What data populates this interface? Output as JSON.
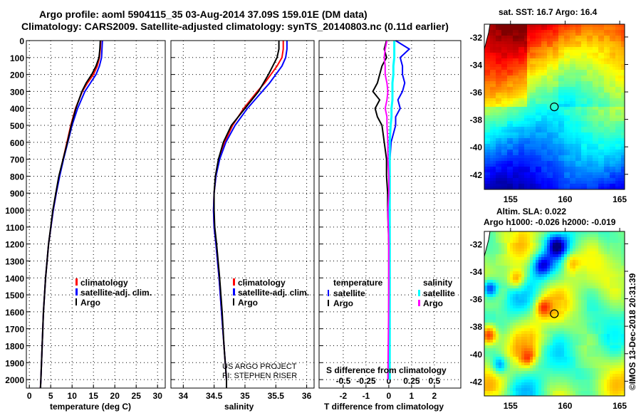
{
  "title_line1": "Argo profile: aoml 5904115_35 03-Aug-2014 37.09S 159.01E (DM data)",
  "title_line2": "Climatology: CARS2009. Satellite-adjusted climatology: synTS_20140803.nc (0.11d earlier)",
  "colors": {
    "climatology": "#ff0000",
    "satellite": "#0000ff",
    "argo": "#000000",
    "sal_satellite": "#00ffff",
    "sal_argo": "#ff00ff"
  },
  "depth_ticks": [
    "0",
    "100",
    "200",
    "300",
    "400",
    "500",
    "600",
    "700",
    "800",
    "900",
    "1000",
    "1100",
    "1200",
    "1300",
    "1400",
    "1500",
    "1600",
    "1700",
    "1800",
    "1900",
    "2000"
  ],
  "legend_profile": {
    "climatology": "climatology",
    "satellite": "satellite-adj. clim.",
    "argo": "Argo"
  },
  "legend_diff": {
    "temperature": "temperature",
    "salinity": "salinity",
    "satellite": "satellite",
    "argo": "Argo"
  },
  "credit": {
    "line1": "US ARGO PROJECT",
    "line2": "PI: STEPHEN RISER"
  },
  "copyright": "©IMOS 13-Dec-2018 20:31:39",
  "chart_data": [
    {
      "type": "line",
      "title": "",
      "xlabel": "temperature (deg C)",
      "ylabel": "depth",
      "xlim": [
        -0.7,
        31.8
      ],
      "ylim": [
        2050,
        0
      ],
      "xticks": [
        "0",
        "5",
        "10",
        "15",
        "20",
        "25",
        "30"
      ],
      "depth": [
        0,
        50,
        100,
        150,
        200,
        250,
        300,
        400,
        500,
        600,
        700,
        800,
        900,
        1000,
        1200,
        1400,
        1600,
        1800,
        2000,
        2050
      ],
      "series": [
        {
          "name": "climatology",
          "values": [
            16.7,
            16.6,
            16.4,
            15.9,
            15.0,
            13.6,
            12.4,
            10.8,
            9.7,
            8.8,
            7.9,
            7.0,
            6.3,
            5.6,
            4.5,
            3.8,
            3.3,
            3.0,
            2.7,
            2.6
          ]
        },
        {
          "name": "satellite-adj. clim.",
          "values": [
            17.1,
            17.0,
            16.9,
            16.4,
            15.6,
            14.3,
            13.0,
            11.3,
            10.0,
            9.0,
            8.0,
            7.1,
            6.3,
            5.6,
            4.5,
            3.8,
            3.3,
            3.0,
            2.7,
            2.6
          ]
        },
        {
          "name": "Argo",
          "values": [
            16.6,
            16.5,
            16.3,
            15.6,
            14.6,
            13.3,
            12.3,
            10.9,
            9.8,
            8.9,
            7.9,
            6.9,
            6.2,
            5.5,
            4.5,
            3.8,
            3.3,
            3.0,
            2.7,
            2.6
          ]
        }
      ]
    },
    {
      "type": "line",
      "title": "",
      "xlabel": "salinity",
      "ylabel": "depth",
      "xlim": [
        33.8,
        36.12
      ],
      "ylim": [
        2050,
        0
      ],
      "xticks": [
        "34",
        "34.5",
        "35",
        "35.5",
        "36"
      ],
      "depth": [
        0,
        50,
        100,
        150,
        200,
        250,
        300,
        400,
        500,
        600,
        700,
        800,
        900,
        1000,
        1100,
        1200,
        1400,
        1600,
        1800,
        2000,
        2050
      ],
      "series": [
        {
          "name": "climatology",
          "values": [
            35.62,
            35.62,
            35.6,
            35.52,
            35.42,
            35.32,
            35.2,
            34.98,
            34.8,
            34.67,
            34.58,
            34.53,
            34.5,
            34.49,
            34.5,
            34.53,
            34.58,
            34.62,
            34.66,
            34.7,
            34.7
          ]
        },
        {
          "name": "satellite-adj. clim.",
          "values": [
            35.68,
            35.68,
            35.66,
            35.6,
            35.5,
            35.4,
            35.28,
            35.04,
            34.84,
            34.69,
            34.59,
            34.53,
            34.5,
            34.49,
            34.5,
            34.53,
            34.58,
            34.62,
            34.66,
            34.7,
            34.7
          ]
        },
        {
          "name": "Argo",
          "values": [
            35.55,
            35.55,
            35.52,
            35.45,
            35.38,
            35.3,
            35.22,
            35.0,
            34.78,
            34.65,
            34.57,
            34.52,
            34.5,
            34.5,
            34.51,
            34.54,
            34.59,
            34.63,
            34.66,
            34.7,
            34.7
          ]
        }
      ]
    },
    {
      "type": "line",
      "title": "",
      "xlabel": "T difference from climatology",
      "x2label": "S difference from climatology",
      "ylabel": "depth",
      "xlim": [
        -3.06,
        3.16
      ],
      "ylim": [
        2050,
        0
      ],
      "xticks": [
        "-2",
        "-1",
        "0",
        "1",
        "2"
      ],
      "x2ticks": [
        "-0.5",
        "-0.25",
        "0",
        "0.25",
        "0.5"
      ],
      "depth": [
        0,
        50,
        100,
        150,
        200,
        250,
        300,
        350,
        400,
        450,
        500,
        600,
        700,
        800,
        900,
        1000,
        1200,
        1500,
        2000
      ],
      "series": [
        {
          "name": "temperature satellite",
          "values": [
            0.3,
            0.9,
            0.5,
            0.6,
            0.6,
            0.7,
            0.6,
            0.4,
            0.5,
            0.3,
            0.3,
            0.1,
            0.05,
            0.02,
            0.02,
            0.0,
            0.0,
            0.0,
            0.0
          ]
        },
        {
          "name": "temperature Argo",
          "values": [
            -0.1,
            -0.2,
            -0.1,
            -0.3,
            -0.4,
            -0.5,
            -0.7,
            -0.4,
            -0.6,
            -0.5,
            -0.3,
            -0.2,
            -0.1,
            -0.1,
            -0.05,
            -0.05,
            0.0,
            0.0,
            0.0
          ]
        },
        {
          "name": "salinity satellite",
          "values": [
            0.06,
            0.06,
            0.06,
            0.05,
            0.05,
            0.04,
            0.04,
            0.04,
            0.03,
            0.03,
            0.02,
            0.01,
            0.01,
            0.01,
            0.01,
            0.01,
            0.01,
            0.01,
            0.01
          ]
        },
        {
          "name": "salinity Argo",
          "values": [
            -0.02,
            -0.04,
            -0.05,
            -0.04,
            -0.04,
            -0.02,
            -0.01,
            -0.02,
            -0.04,
            -0.02,
            -0.02,
            -0.01,
            -0.01,
            0.0,
            0.0,
            -0.01,
            0.0,
            0.0,
            -0.01
          ]
        }
      ]
    },
    {
      "type": "heatmap",
      "title": "sat. SST: 16.7 Argo: 16.4",
      "xticks": [
        "155",
        "160",
        "165"
      ],
      "yticks": [
        "-32",
        "-34",
        "-36",
        "-38",
        "-40",
        "-42"
      ],
      "xlim": [
        152.6,
        165.45
      ],
      "ylim": [
        -43.1,
        -31.07
      ],
      "marker": {
        "lon": 159.01,
        "lat": -37.09
      }
    },
    {
      "type": "heatmap",
      "title": "Altim. SLA: 0.022",
      "subtitle": "Argo h1000: -0.026 h2000: -0.019",
      "xticks": [
        "155",
        "160",
        "165"
      ],
      "yticks": [
        "-32",
        "-34",
        "-36",
        "-38",
        "-40",
        "-42"
      ],
      "xlim": [
        152.6,
        165.45
      ],
      "ylim": [
        -43.07,
        -31.1
      ],
      "marker": {
        "lon": 159.01,
        "lat": -37.09
      }
    }
  ]
}
